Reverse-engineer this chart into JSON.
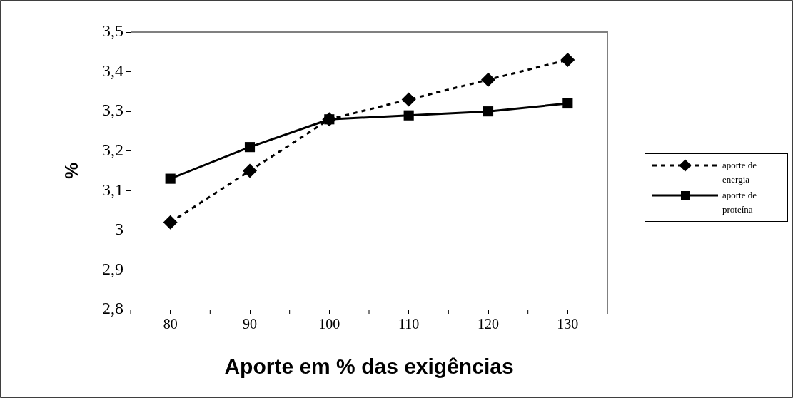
{
  "chart_data": {
    "type": "line",
    "xlabel": "Aporte em % das exigências",
    "ylabel": "%",
    "categories": [
      "80",
      "90",
      "100",
      "110",
      "120",
      "130"
    ],
    "series": [
      {
        "name": "aporte de energia",
        "color": "#000000",
        "marker": "diamond",
        "line_style": "dashed",
        "values": [
          3.02,
          3.15,
          3.28,
          3.33,
          3.38,
          3.43
        ]
      },
      {
        "name": "aporte de proteína",
        "color": "#000000",
        "marker": "square",
        "line_style": "solid",
        "values": [
          3.13,
          3.21,
          3.28,
          3.29,
          3.3,
          3.32
        ]
      }
    ],
    "ylim": [
      2.8,
      3.5
    ],
    "yticks": [
      {
        "value": 2.8,
        "label": "2,8"
      },
      {
        "value": 2.9,
        "label": "2,9"
      },
      3,
      {
        "value": 3.1,
        "label": "3,1"
      },
      {
        "value": 3.2,
        "label": "3,2"
      },
      {
        "value": 3.3,
        "label": "3,3"
      },
      {
        "value": 3.4,
        "label": "3,4"
      },
      {
        "value": 3.5,
        "label": "3,5"
      }
    ],
    "grid": false,
    "legend": "right"
  }
}
